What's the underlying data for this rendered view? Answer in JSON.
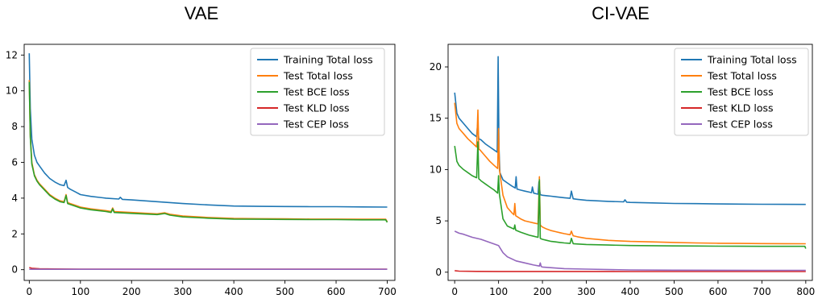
{
  "chart_data": [
    {
      "type": "line",
      "title": "VAE",
      "xlabel": "",
      "ylabel": "",
      "xlim": [
        -10,
        715
      ],
      "ylim": [
        -0.6,
        12.6
      ],
      "xticks": [
        0,
        100,
        200,
        300,
        400,
        500,
        600,
        700
      ],
      "yticks": [
        0,
        2,
        4,
        6,
        8,
        10,
        12
      ],
      "grid": false,
      "legend_position": "top-right",
      "series": [
        {
          "name": "Training Total loss",
          "color": "#1f77b4",
          "x": [
            0,
            2,
            5,
            10,
            15,
            20,
            30,
            40,
            50,
            60,
            68,
            72,
            75,
            80,
            90,
            100,
            120,
            150,
            175,
            178,
            182,
            200,
            250,
            300,
            350,
            400,
            450,
            500,
            550,
            600,
            650,
            700
          ],
          "y": [
            12.1,
            9.0,
            7.3,
            6.4,
            6.0,
            5.8,
            5.4,
            5.1,
            4.9,
            4.75,
            4.7,
            5.0,
            4.6,
            4.5,
            4.35,
            4.2,
            4.1,
            4.0,
            3.95,
            4.05,
            3.93,
            3.9,
            3.8,
            3.7,
            3.62,
            3.56,
            3.54,
            3.53,
            3.52,
            3.52,
            3.51,
            3.5
          ]
        },
        {
          "name": "Test Total loss",
          "color": "#ff7f0e",
          "x": [
            0,
            2,
            5,
            10,
            15,
            20,
            30,
            40,
            50,
            60,
            68,
            72,
            75,
            80,
            90,
            100,
            120,
            150,
            160,
            163,
            166,
            200,
            250,
            265,
            275,
            300,
            350,
            400,
            450,
            500,
            550,
            600,
            650,
            697,
            700
          ],
          "y": [
            10.6,
            7.5,
            6.0,
            5.3,
            5.0,
            4.8,
            4.5,
            4.2,
            4.0,
            3.85,
            3.8,
            4.2,
            3.75,
            3.7,
            3.6,
            3.5,
            3.4,
            3.3,
            3.25,
            3.45,
            3.25,
            3.2,
            3.12,
            3.18,
            3.1,
            3.0,
            2.92,
            2.87,
            2.85,
            2.84,
            2.83,
            2.83,
            2.82,
            2.82,
            2.68
          ]
        },
        {
          "name": "Test BCE loss",
          "color": "#2ca02c",
          "x": [
            0,
            2,
            5,
            10,
            15,
            20,
            30,
            40,
            50,
            60,
            68,
            72,
            75,
            80,
            90,
            100,
            120,
            150,
            160,
            163,
            166,
            200,
            250,
            265,
            275,
            300,
            350,
            400,
            450,
            500,
            550,
            600,
            650,
            697,
            700
          ],
          "y": [
            10.5,
            7.4,
            5.9,
            5.25,
            4.95,
            4.75,
            4.45,
            4.15,
            3.95,
            3.8,
            3.75,
            4.15,
            3.7,
            3.65,
            3.55,
            3.45,
            3.35,
            3.25,
            3.2,
            3.4,
            3.2,
            3.15,
            3.08,
            3.14,
            3.05,
            2.95,
            2.88,
            2.83,
            2.82,
            2.81,
            2.8,
            2.8,
            2.79,
            2.79,
            2.65
          ]
        },
        {
          "name": "Test KLD loss",
          "color": "#d62728",
          "x": [
            0,
            5,
            20,
            50,
            100,
            700
          ],
          "y": [
            0.12,
            0.08,
            0.05,
            0.04,
            0.03,
            0.03
          ]
        },
        {
          "name": "Test CEP loss",
          "color": "#9467bd",
          "x": [
            0,
            100,
            700
          ],
          "y": [
            0.02,
            0.02,
            0.02
          ]
        }
      ]
    },
    {
      "type": "line",
      "title": "CI-VAE",
      "xlabel": "",
      "ylabel": "",
      "xlim": [
        -15,
        815
      ],
      "ylim": [
        -0.8,
        22.2
      ],
      "xticks": [
        0,
        100,
        200,
        300,
        400,
        500,
        600,
        700,
        800
      ],
      "yticks": [
        0,
        5,
        10,
        15,
        20
      ],
      "grid": false,
      "legend_position": "top-right",
      "series": [
        {
          "name": "Training Total loss",
          "color": "#1f77b4",
          "x": [
            0,
            5,
            10,
            20,
            30,
            40,
            50,
            52,
            55,
            60,
            70,
            80,
            90,
            97,
            99,
            101,
            103,
            110,
            120,
            130,
            138,
            140,
            142,
            150,
            160,
            170,
            175,
            177,
            180,
            190,
            192,
            195,
            200,
            210,
            220,
            230,
            240,
            250,
            263,
            266,
            270,
            280,
            300,
            350,
            385,
            388,
            392,
            400,
            450,
            500,
            550,
            600,
            650,
            700,
            750,
            800
          ],
          "y": [
            17.5,
            15.5,
            15.0,
            14.5,
            14.0,
            13.5,
            13.2,
            14.3,
            13.0,
            12.9,
            12.5,
            12.2,
            11.9,
            11.7,
            21.0,
            12.0,
            9.7,
            9.0,
            8.7,
            8.4,
            8.2,
            9.3,
            8.1,
            8.0,
            7.9,
            7.8,
            7.75,
            8.3,
            7.7,
            7.6,
            8.8,
            7.55,
            7.5,
            7.45,
            7.4,
            7.35,
            7.3,
            7.25,
            7.2,
            7.9,
            7.15,
            7.1,
            7.0,
            6.9,
            6.85,
            7.05,
            6.82,
            6.8,
            6.75,
            6.7,
            6.68,
            6.65,
            6.63,
            6.62,
            6.61,
            6.6
          ]
        },
        {
          "name": "Test Total loss",
          "color": "#ff7f0e",
          "x": [
            0,
            5,
            10,
            20,
            30,
            40,
            50,
            53,
            55,
            58,
            60,
            70,
            80,
            90,
            98,
            100,
            102,
            110,
            120,
            130,
            135,
            137,
            139,
            150,
            160,
            170,
            180,
            190,
            193,
            195,
            197,
            200,
            210,
            220,
            230,
            240,
            250,
            263,
            266,
            270,
            280,
            300,
            350,
            400,
            450,
            500,
            550,
            600,
            650,
            700,
            750,
            800
          ],
          "y": [
            16.5,
            14.5,
            14.0,
            13.5,
            13.0,
            12.6,
            12.2,
            15.8,
            12.0,
            11.9,
            11.8,
            11.3,
            10.8,
            10.4,
            10.1,
            14.0,
            10.0,
            7.5,
            6.3,
            5.8,
            5.6,
            6.7,
            5.5,
            5.2,
            5.0,
            4.9,
            4.8,
            4.7,
            9.3,
            4.6,
            4.5,
            4.4,
            4.2,
            4.05,
            3.95,
            3.85,
            3.75,
            3.65,
            4.0,
            3.55,
            3.45,
            3.3,
            3.1,
            3.0,
            2.95,
            2.9,
            2.85,
            2.82,
            2.8,
            2.79,
            2.78,
            2.77
          ]
        },
        {
          "name": "Test BCE loss",
          "color": "#2ca02c",
          "x": [
            0,
            5,
            10,
            20,
            30,
            40,
            50,
            53,
            55,
            58,
            60,
            70,
            80,
            90,
            98,
            100,
            102,
            110,
            120,
            130,
            135,
            137,
            139,
            150,
            160,
            170,
            180,
            190,
            193,
            195,
            197,
            200,
            210,
            220,
            230,
            240,
            250,
            263,
            266,
            270,
            280,
            300,
            350,
            400,
            450,
            500,
            550,
            600,
            650,
            700,
            750,
            798,
            800
          ],
          "y": [
            12.3,
            10.8,
            10.4,
            10.0,
            9.7,
            9.4,
            9.2,
            12.7,
            9.1,
            9.0,
            8.9,
            8.6,
            8.3,
            8.0,
            7.7,
            9.4,
            7.6,
            5.2,
            4.5,
            4.3,
            4.2,
            4.6,
            4.1,
            3.9,
            3.75,
            3.6,
            3.5,
            3.4,
            9.0,
            3.3,
            3.25,
            3.2,
            3.1,
            3.0,
            2.95,
            2.9,
            2.85,
            2.8,
            3.3,
            2.78,
            2.75,
            2.7,
            2.65,
            2.6,
            2.58,
            2.56,
            2.55,
            2.54,
            2.53,
            2.52,
            2.52,
            2.52,
            2.3
          ]
        },
        {
          "name": "Test KLD loss",
          "color": "#d62728",
          "x": [
            0,
            10,
            50,
            100,
            200,
            400,
            600,
            800
          ],
          "y": [
            0.15,
            0.1,
            0.08,
            0.07,
            0.07,
            0.06,
            0.06,
            0.06
          ]
        },
        {
          "name": "Test CEP loss",
          "color": "#9467bd",
          "x": [
            0,
            10,
            20,
            40,
            60,
            80,
            100,
            110,
            120,
            140,
            160,
            180,
            193,
            195,
            197,
            200,
            250,
            300,
            400,
            500,
            600,
            700,
            800
          ],
          "y": [
            4.0,
            3.8,
            3.7,
            3.4,
            3.2,
            2.9,
            2.6,
            1.9,
            1.5,
            1.1,
            0.9,
            0.7,
            0.6,
            0.9,
            0.55,
            0.5,
            0.35,
            0.3,
            0.22,
            0.2,
            0.19,
            0.18,
            0.18
          ]
        }
      ]
    }
  ]
}
